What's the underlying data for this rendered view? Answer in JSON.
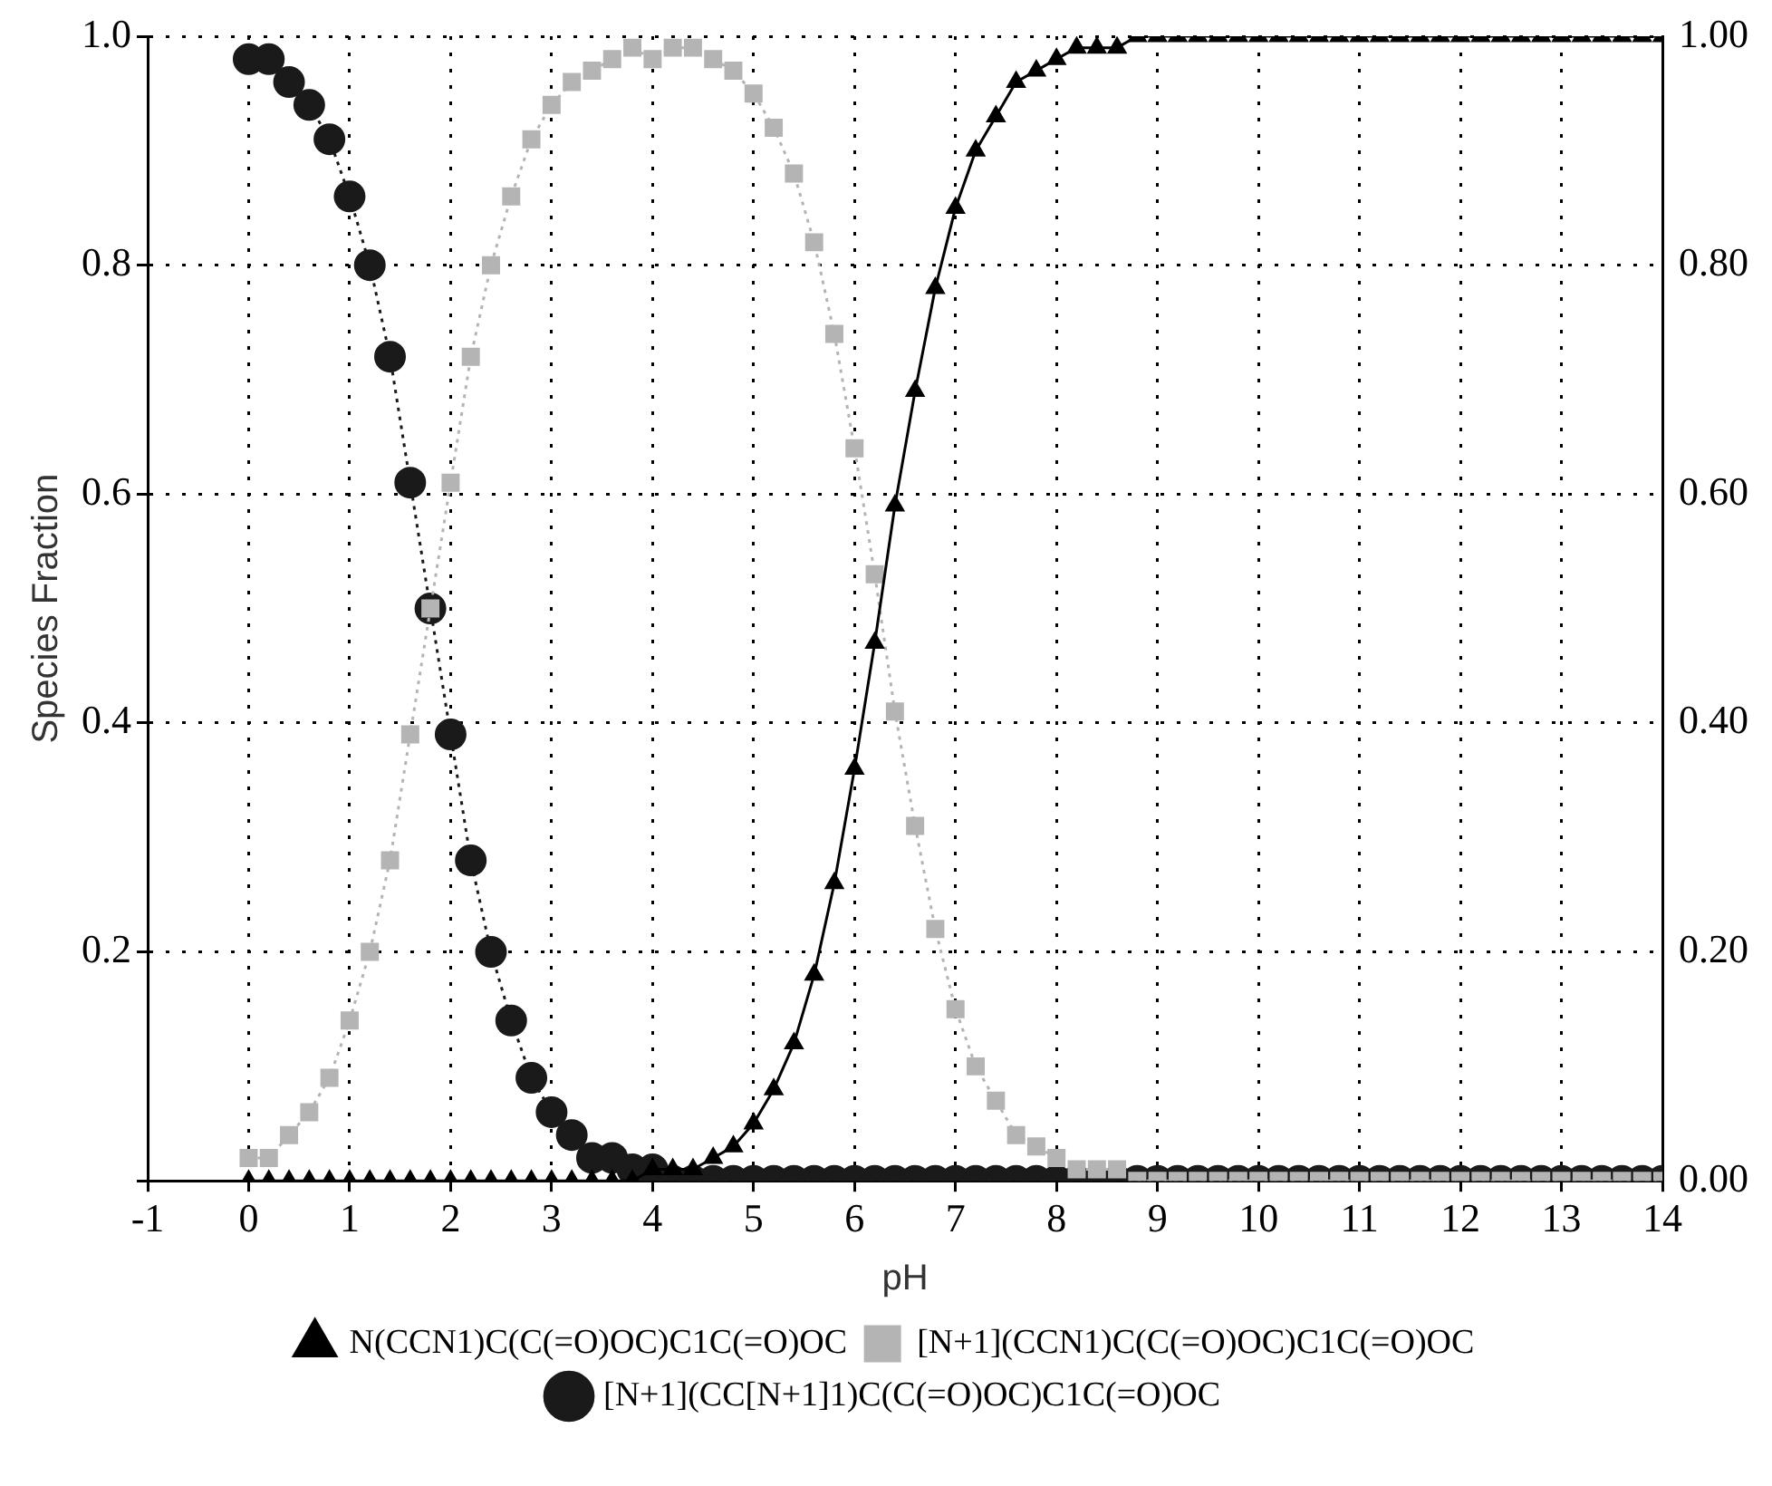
{
  "chart_data": {
    "type": "line",
    "xlabel": "pH",
    "ylabel": "Species Fraction",
    "x": [
      0,
      0.2,
      0.4,
      0.6,
      0.8,
      1,
      1.2,
      1.4,
      1.6,
      1.8,
      2,
      2.2,
      2.4,
      2.6,
      2.8,
      3,
      3.2,
      3.4,
      3.6,
      3.8,
      4,
      4.2,
      4.4,
      4.6,
      4.8,
      5,
      5.2,
      5.4,
      5.6,
      5.8,
      6,
      6.2,
      6.4,
      6.6,
      6.8,
      7,
      7.2,
      7.4,
      7.6,
      7.8,
      8,
      8.2,
      8.4,
      8.6,
      8.8,
      9,
      9.2,
      9.4,
      9.6,
      9.8,
      10,
      10.2,
      10.4,
      10.6,
      10.8,
      11,
      11.2,
      11.4,
      11.6,
      11.8,
      12,
      12.2,
      12.4,
      12.6,
      12.8,
      13,
      13.2,
      13.4,
      13.6,
      13.8,
      14
    ],
    "series": [
      {
        "name": "N(CCN1)C(C(=O)OC)C1C(=O)OC",
        "color": "#000000",
        "marker": "triangle",
        "line_style": "solid",
        "values": [
          0,
          0,
          0,
          0,
          0,
          0,
          0,
          0,
          0,
          0,
          0,
          0,
          0,
          0,
          0,
          0,
          0,
          0,
          0,
          0,
          0.01,
          0.01,
          0.01,
          0.02,
          0.03,
          0.05,
          0.08,
          0.12,
          0.18,
          0.26,
          0.36,
          0.47,
          0.59,
          0.69,
          0.78,
          0.85,
          0.9,
          0.93,
          0.96,
          0.97,
          0.98,
          0.99,
          0.99,
          0.99,
          1,
          1,
          1,
          1,
          1,
          1,
          1,
          1,
          1,
          1,
          1,
          1,
          1,
          1,
          1,
          1,
          1,
          1,
          1,
          1,
          1,
          1,
          1,
          1,
          1,
          1,
          1
        ]
      },
      {
        "name": "[N+1](CCN1)C(C(=O)OC)C1C(=O)OC",
        "color": "#b4b4b4",
        "marker": "square",
        "line_style": "dotted",
        "values": [
          0.02,
          0.02,
          0.04,
          0.06,
          0.09,
          0.14,
          0.2,
          0.28,
          0.39,
          0.5,
          0.61,
          0.72,
          0.8,
          0.86,
          0.91,
          0.94,
          0.96,
          0.97,
          0.98,
          0.99,
          0.98,
          0.99,
          0.99,
          0.98,
          0.97,
          0.95,
          0.92,
          0.88,
          0.82,
          0.74,
          0.64,
          0.53,
          0.41,
          0.31,
          0.22,
          0.15,
          0.1,
          0.07,
          0.04,
          0.03,
          0.02,
          0.01,
          0.01,
          0.01,
          0,
          0,
          0,
          0,
          0,
          0,
          0,
          0,
          0,
          0,
          0,
          0,
          0,
          0,
          0,
          0,
          0,
          0,
          0,
          0,
          0,
          0,
          0,
          0,
          0,
          0,
          0
        ]
      },
      {
        "name": "[N+1](CC[N+1]1)C(C(=O)OC)C1C(=O)OC",
        "color": "#1a1a1a",
        "marker": "circle",
        "line_style": "dotted",
        "values": [
          0.98,
          0.98,
          0.96,
          0.94,
          0.91,
          0.86,
          0.8,
          0.72,
          0.61,
          0.5,
          0.39,
          0.28,
          0.2,
          0.14,
          0.09,
          0.06,
          0.04,
          0.02,
          0.02,
          0.01,
          0.01,
          0,
          0,
          0,
          0,
          0,
          0,
          0,
          0,
          0,
          0,
          0,
          0,
          0,
          0,
          0,
          0,
          0,
          0,
          0,
          0,
          0,
          0,
          0,
          0,
          0,
          0,
          0,
          0,
          0,
          0,
          0,
          0,
          0,
          0,
          0,
          0,
          0,
          0,
          0,
          0,
          0,
          0,
          0,
          0,
          0,
          0,
          0,
          0,
          0,
          0
        ]
      }
    ],
    "xlim": [
      -1,
      14
    ],
    "xticks": [
      -1,
      0,
      1,
      2,
      3,
      4,
      5,
      6,
      7,
      8,
      9,
      10,
      11,
      12,
      13,
      14
    ],
    "ylim": [
      0,
      1
    ],
    "yticks": [
      {
        "value": 0,
        "label": null
      },
      0.2,
      0.4,
      0.6,
      0.8,
      {
        "value": 1,
        "label": "1.0"
      }
    ],
    "y2lim": [
      0,
      1
    ],
    "y2ticks": [
      {
        "value": 0,
        "label": "0.00"
      },
      {
        "value": 0.2,
        "label": "0.20"
      },
      {
        "value": 0.4,
        "label": "0.40"
      },
      {
        "value": 0.6,
        "label": "0.60"
      },
      {
        "value": 0.8,
        "label": "0.80"
      },
      {
        "value": 1,
        "label": "1.00"
      }
    ],
    "grid": true,
    "legend": "bottom"
  }
}
